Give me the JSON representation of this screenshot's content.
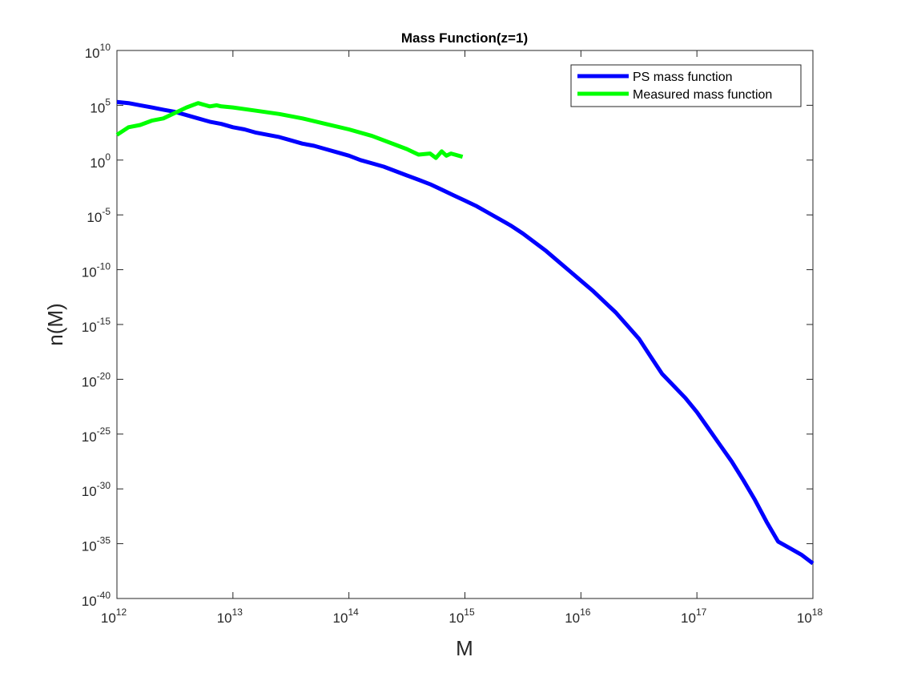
{
  "chart_data": {
    "type": "line",
    "title": "Mass Function(z=1)",
    "xlabel": "M",
    "ylabel": "n(M)",
    "xscale": "log",
    "yscale": "log",
    "xlim_exponent": [
      12,
      18
    ],
    "ylim_exponent": [
      -40,
      10
    ],
    "x_ticks": [
      {
        "base": "10",
        "exp": "12"
      },
      {
        "base": "10",
        "exp": "13"
      },
      {
        "base": "10",
        "exp": "14"
      },
      {
        "base": "10",
        "exp": "15"
      },
      {
        "base": "10",
        "exp": "16"
      },
      {
        "base": "10",
        "exp": "17"
      },
      {
        "base": "10",
        "exp": "18"
      }
    ],
    "y_ticks": [
      {
        "base": "10",
        "exp": "10"
      },
      {
        "base": "10",
        "exp": "5"
      },
      {
        "base": "10",
        "exp": "0"
      },
      {
        "base": "10",
        "exp": "-5"
      },
      {
        "base": "10",
        "exp": "-10"
      },
      {
        "base": "10",
        "exp": "-15"
      },
      {
        "base": "10",
        "exp": "-20"
      },
      {
        "base": "10",
        "exp": "-25"
      },
      {
        "base": "10",
        "exp": "-30"
      },
      {
        "base": "10",
        "exp": "-35"
      },
      {
        "base": "10",
        "exp": "-40"
      }
    ],
    "grid": false,
    "legend_position": "top-right",
    "series": [
      {
        "name": "PS mass function",
        "color": "#0000ff",
        "log10_x": [
          12.0,
          12.1,
          12.2,
          12.3,
          12.4,
          12.5,
          12.6,
          12.7,
          12.8,
          12.9,
          13.0,
          13.1,
          13.2,
          13.3,
          13.4,
          13.5,
          13.6,
          13.7,
          13.8,
          13.9,
          14.0,
          14.1,
          14.2,
          14.3,
          14.4,
          14.5,
          14.6,
          14.7,
          14.8,
          14.9,
          15.0,
          15.1,
          15.2,
          15.3,
          15.4,
          15.5,
          15.6,
          15.7,
          15.8,
          15.9,
          16.0,
          16.1,
          16.2,
          16.3,
          16.4,
          16.5,
          16.6,
          16.7,
          16.8,
          16.9,
          17.0,
          17.1,
          17.2,
          17.3,
          17.4,
          17.5,
          17.6,
          17.7,
          17.8,
          17.9,
          18.0
        ],
        "log10_y": [
          5.3,
          5.2,
          5.0,
          4.8,
          4.6,
          4.4,
          4.1,
          3.8,
          3.5,
          3.3,
          3.0,
          2.8,
          2.5,
          2.3,
          2.1,
          1.8,
          1.5,
          1.3,
          1.0,
          0.7,
          0.4,
          0.0,
          -0.3,
          -0.6,
          -1.0,
          -1.4,
          -1.8,
          -2.2,
          -2.7,
          -3.2,
          -3.7,
          -4.2,
          -4.8,
          -5.4,
          -6.0,
          -6.7,
          -7.5,
          -8.3,
          -9.2,
          -10.1,
          -11.0,
          -11.9,
          -12.9,
          -13.9,
          -15.1,
          -16.3,
          -17.9,
          -19.5,
          -20.6,
          -21.7,
          -23.0,
          -24.5,
          -26.0,
          -27.5,
          -29.2,
          -31.0,
          -33.0,
          -34.8,
          -35.4,
          -36.0,
          -36.8
        ]
      },
      {
        "name": "Measured mass function",
        "color": "#00ff00",
        "log10_x": [
          12.0,
          12.1,
          12.2,
          12.3,
          12.4,
          12.5,
          12.6,
          12.7,
          12.8,
          12.86,
          12.9,
          13.0,
          13.2,
          13.4,
          13.6,
          13.8,
          14.0,
          14.2,
          14.4,
          14.5,
          14.6,
          14.7,
          14.75,
          14.8,
          14.84,
          14.88,
          14.98
        ],
        "log10_y": [
          2.3,
          3.0,
          3.2,
          3.6,
          3.8,
          4.3,
          4.8,
          5.2,
          4.9,
          5.0,
          4.9,
          4.8,
          4.5,
          4.2,
          3.8,
          3.3,
          2.8,
          2.2,
          1.4,
          1.0,
          0.5,
          0.6,
          0.2,
          0.8,
          0.4,
          0.6,
          0.3
        ]
      }
    ]
  }
}
